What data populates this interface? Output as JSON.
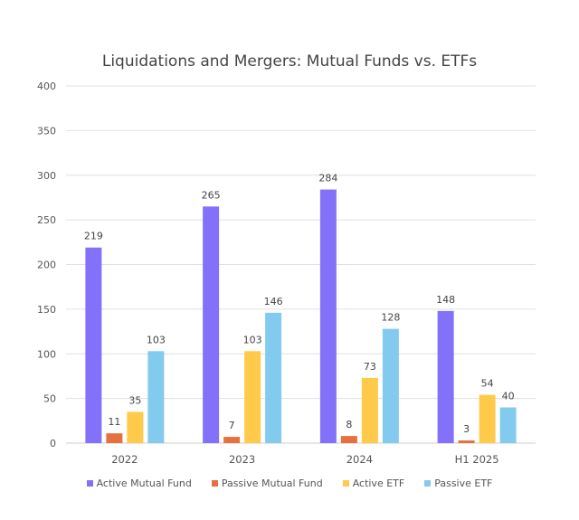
{
  "chart_data": {
    "type": "bar",
    "title": "Liquidations and Mergers: Mutual Funds vs. ETFs",
    "xlabel": "",
    "ylabel": "",
    "ylim": [
      0,
      400
    ],
    "yticks": [
      0,
      50,
      100,
      150,
      200,
      250,
      300,
      350,
      400
    ],
    "grid": true,
    "legend_position": "bottom",
    "categories": [
      "2022",
      "2023",
      "2024",
      "H1 2025"
    ],
    "series": [
      {
        "name": "Active Mutual Fund",
        "color": "#8471F9",
        "values": [
          219,
          265,
          284,
          148
        ]
      },
      {
        "name": "Passive Mutual Fund",
        "color": "#E8703E",
        "values": [
          11,
          7,
          8,
          3
        ]
      },
      {
        "name": "Active ETF",
        "color": "#FFCA4A",
        "values": [
          35,
          103,
          73,
          54
        ]
      },
      {
        "name": "Passive ETF",
        "color": "#83CBEE",
        "values": [
          103,
          146,
          128,
          40
        ]
      }
    ]
  }
}
